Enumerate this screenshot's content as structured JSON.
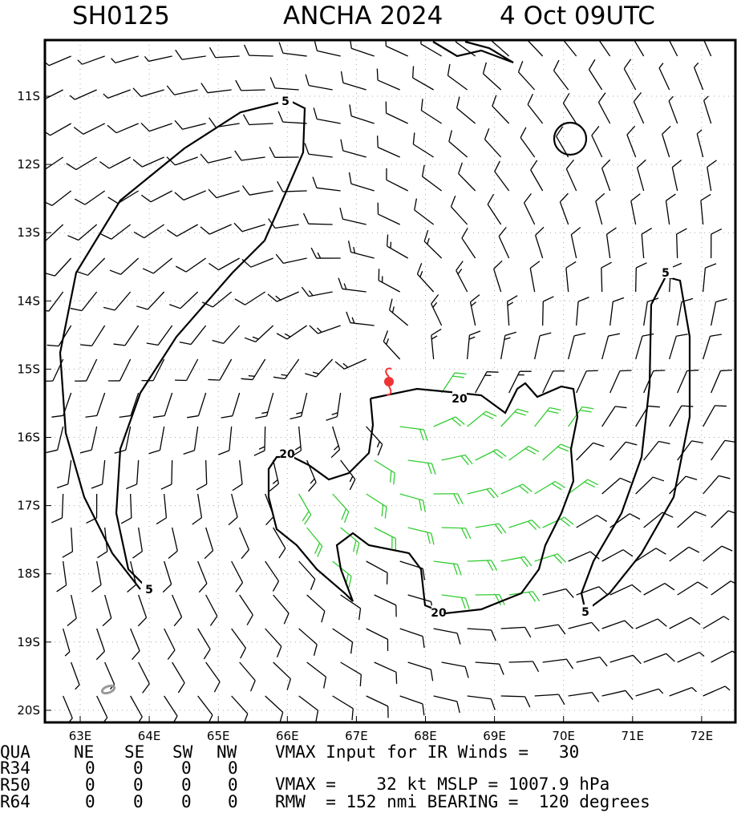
{
  "header": {
    "storm_id": "SH0125",
    "storm_name": "ANCHA 2024",
    "time": "4 Oct 09UTC"
  },
  "map": {
    "lon_labels": [
      "63E",
      "64E",
      "65E",
      "66E",
      "67E",
      "68E",
      "69E",
      "70E",
      "71E",
      "72E"
    ],
    "lat_labels": [
      "11S",
      "12S",
      "13S",
      "14S",
      "15S",
      "16S",
      "17S",
      "18S",
      "19S",
      "20S"
    ],
    "contour_labels": [
      "5",
      "5",
      "5",
      "5",
      "20",
      "20",
      "20"
    ]
  },
  "footer": {
    "header": [
      "QUA",
      "NE",
      "SE",
      "SW",
      "NW"
    ],
    "rows": [
      [
        "R34",
        "0",
        "0",
        "0",
        "0"
      ],
      [
        "R50",
        "0",
        "0",
        "0",
        "0"
      ],
      [
        "R64",
        "0",
        "0",
        "0",
        "0"
      ]
    ],
    "vmax_ir": "VMAX Input for IR Winds =   30",
    "vmax_mslp": "VMAX =    32 kt MSLP = 1007.9 hPa",
    "rmw": "RMW  = 152 nmi BEARING =  120 degrees"
  }
}
